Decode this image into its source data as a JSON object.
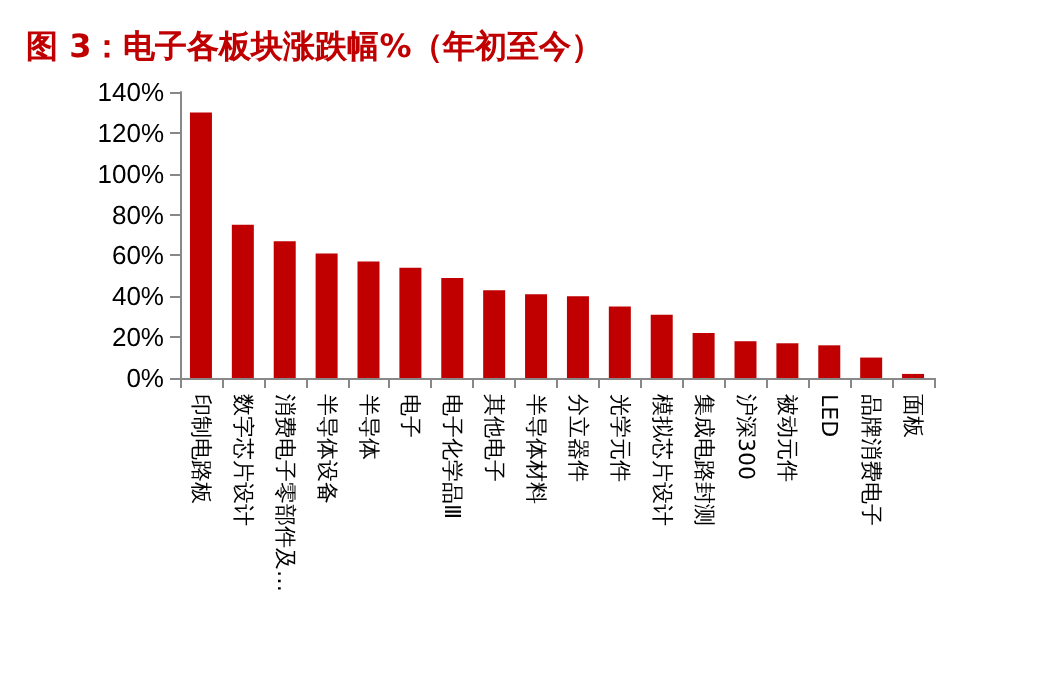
{
  "chart_data": {
    "type": "bar",
    "title": "图 3：电子各板块涨跌幅%（年初至今）",
    "categories": [
      "印制电路板",
      "数字芯片设计",
      "消费电子零部件及…",
      "半导体设备",
      "半导体",
      "电子",
      "电子化学品Ⅲ",
      "其他电子",
      "半导体材料",
      "分立器件",
      "光学元件",
      "模拟芯片设计",
      "集成电路封测",
      "沪深300",
      "被动元件",
      "LED",
      "品牌消费电子",
      "面板"
    ],
    "values": [
      130,
      75,
      67,
      61,
      57,
      54,
      49,
      43,
      41,
      40,
      35,
      31,
      22,
      18,
      17,
      16,
      10,
      2
    ],
    "color": "#c00000",
    "ylim": [
      0,
      140
    ],
    "yticks": [
      {
        "value": 0,
        "label": "0%"
      },
      {
        "value": 20,
        "label": "20%"
      },
      {
        "value": 40,
        "label": "40%"
      },
      {
        "value": 60,
        "label": "60%"
      },
      {
        "value": 80,
        "label": "80%"
      },
      {
        "value": 100,
        "label": "100%"
      },
      {
        "value": 120,
        "label": "120%"
      },
      {
        "value": 140,
        "label": "140%"
      }
    ],
    "grid": false
  }
}
